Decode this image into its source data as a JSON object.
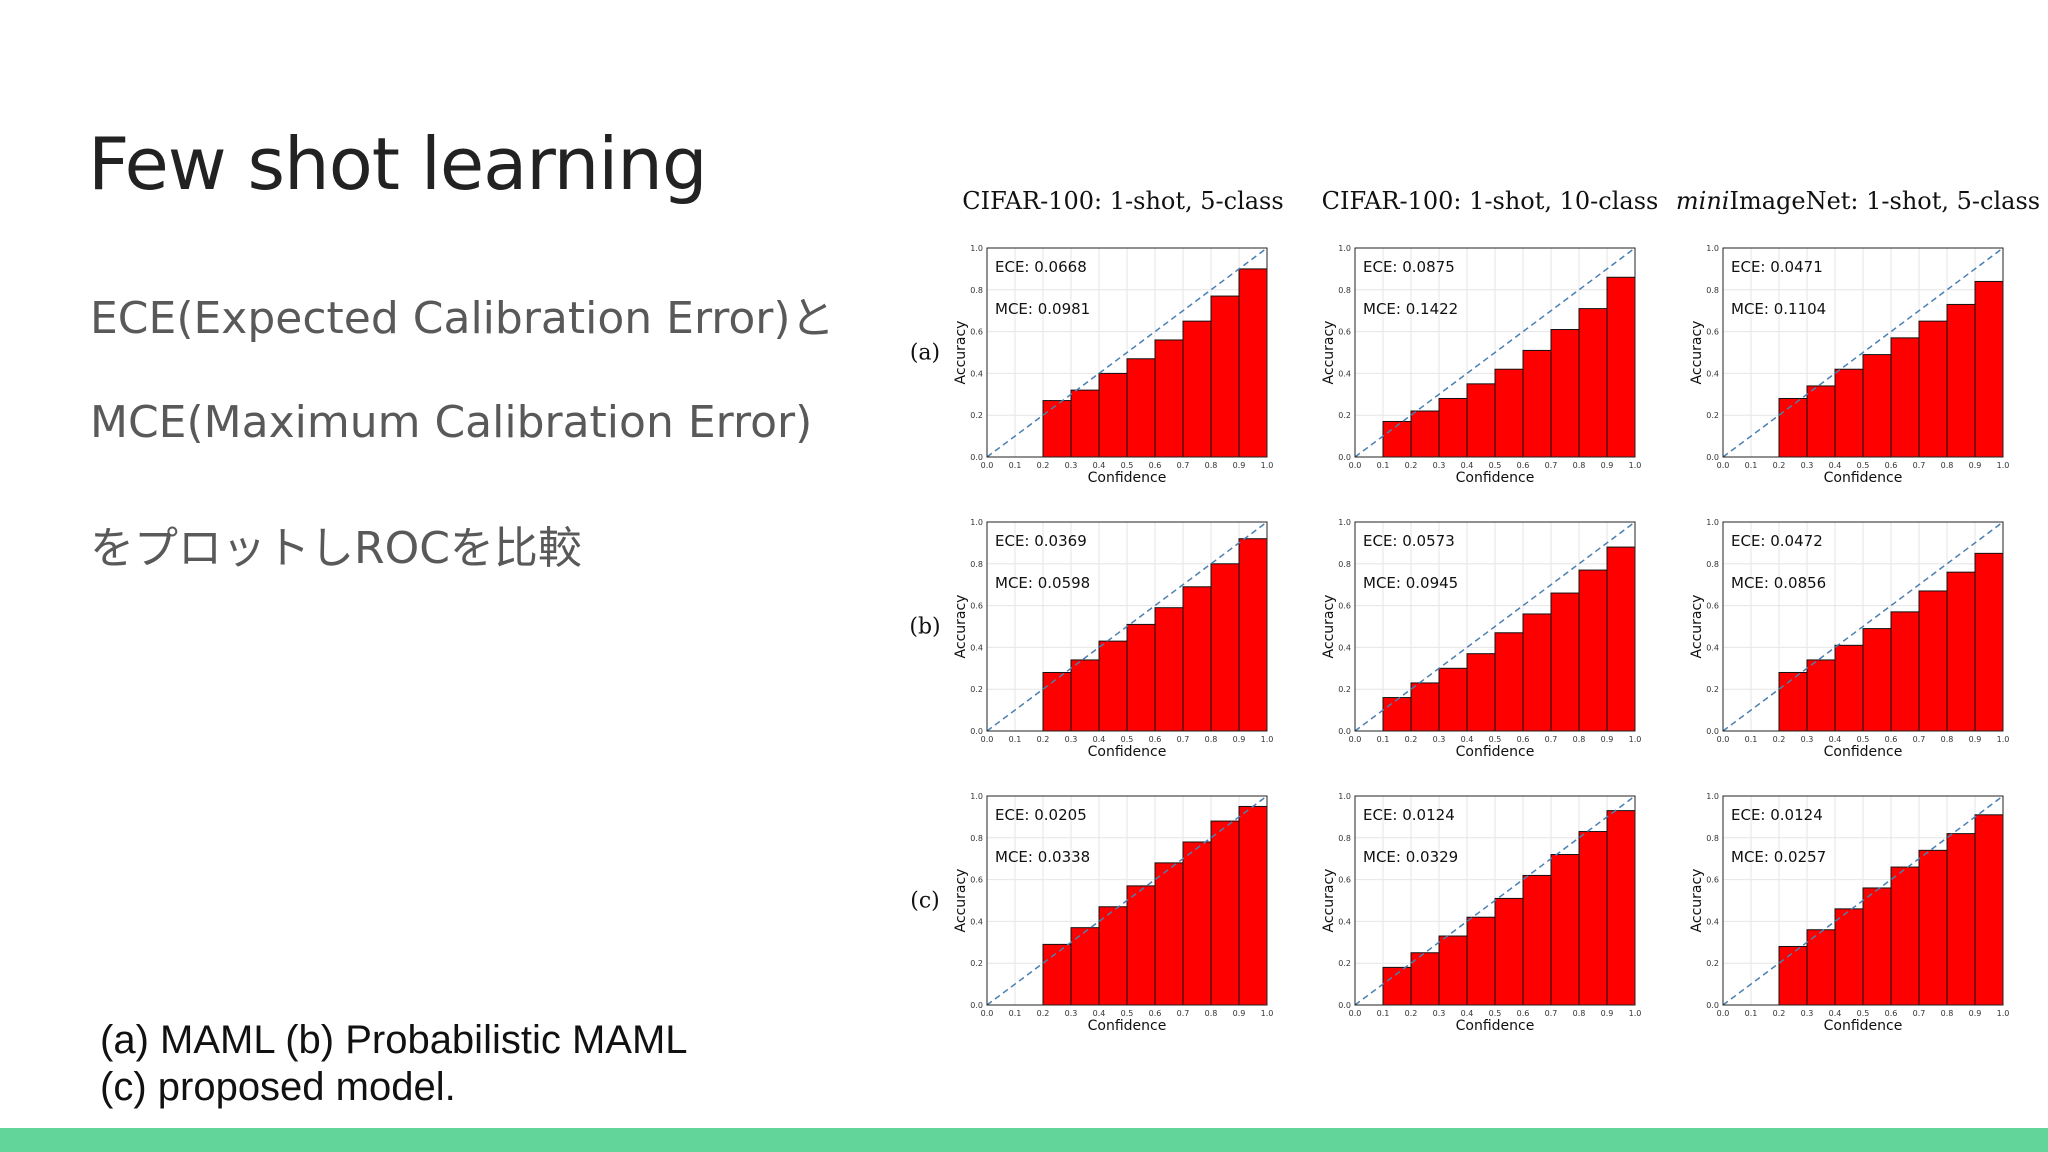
{
  "slide": {
    "title": "Few shot learning",
    "body_lines": [
      "ECE(Expected Calibration Error)と",
      "MCE(Maximum Calibration Error)",
      "をプロットしROCを比較"
    ],
    "caption_lines": [
      "(a) MAML (b) Probabilistic MAML",
      "(c) proposed model."
    ],
    "accent_color": "#62d59a"
  },
  "chart_data": {
    "type": "bar",
    "column_titles": [
      {
        "prefix": "",
        "italic": "",
        "rest": "CIFAR-100: 1-shot, 5-class"
      },
      {
        "prefix": "",
        "italic": "",
        "rest": "CIFAR-100: 1-shot, 10-class"
      },
      {
        "prefix": "",
        "italic": "mini",
        "rest": "ImageNet: 1-shot, 5-class"
      }
    ],
    "row_labels": [
      "(a)",
      "(b)",
      "(c)"
    ],
    "xlabel": "Confidence",
    "ylabel": "Accuracy",
    "xlim": [
      0,
      1
    ],
    "ylim": [
      0,
      1
    ],
    "ticks": [
      "0.0",
      "0.1",
      "0.2",
      "0.3",
      "0.4",
      "0.5",
      "0.6",
      "0.7",
      "0.8",
      "0.9",
      "1.0"
    ],
    "y_ticks": [
      "0.0",
      "0.2",
      "0.4",
      "0.6",
      "0.8",
      "1.0"
    ],
    "bin_edges": [
      0,
      0.1,
      0.2,
      0.3,
      0.4,
      0.5,
      0.6,
      0.7,
      0.8,
      0.9,
      1.0
    ],
    "bar_color": "#ff0000",
    "diagonal_color": "#4a7fb0",
    "grid": true,
    "panels": [
      [
        {
          "ece_label": "ECE: 0.0668",
          "mce_label": "MCE: 0.0981",
          "values": [
            0,
            0,
            0.27,
            0.32,
            0.4,
            0.47,
            0.56,
            0.65,
            0.77,
            0.9
          ]
        },
        {
          "ece_label": "ECE: 0.0875",
          "mce_label": "MCE: 0.1422",
          "values": [
            0,
            0.17,
            0.22,
            0.28,
            0.35,
            0.42,
            0.51,
            0.61,
            0.71,
            0.86
          ]
        },
        {
          "ece_label": "ECE: 0.0471",
          "mce_label": "MCE: 0.1104",
          "values": [
            0,
            0,
            0.28,
            0.34,
            0.42,
            0.49,
            0.57,
            0.65,
            0.73,
            0.84
          ]
        }
      ],
      [
        {
          "ece_label": "ECE: 0.0369",
          "mce_label": "MCE: 0.0598",
          "values": [
            0,
            0,
            0.28,
            0.34,
            0.43,
            0.51,
            0.59,
            0.69,
            0.8,
            0.92
          ]
        },
        {
          "ece_label": "ECE: 0.0573",
          "mce_label": "MCE: 0.0945",
          "values": [
            0,
            0.16,
            0.23,
            0.3,
            0.37,
            0.47,
            0.56,
            0.66,
            0.77,
            0.88
          ]
        },
        {
          "ece_label": "ECE: 0.0472",
          "mce_label": "MCE: 0.0856",
          "values": [
            0,
            0,
            0.28,
            0.34,
            0.41,
            0.49,
            0.57,
            0.67,
            0.76,
            0.85
          ]
        }
      ],
      [
        {
          "ece_label": "ECE: 0.0205",
          "mce_label": "MCE: 0.0338",
          "values": [
            0,
            0,
            0.29,
            0.37,
            0.47,
            0.57,
            0.68,
            0.78,
            0.88,
            0.95
          ]
        },
        {
          "ece_label": "ECE: 0.0124",
          "mce_label": "MCE: 0.0329",
          "values": [
            0,
            0.18,
            0.25,
            0.33,
            0.42,
            0.51,
            0.62,
            0.72,
            0.83,
            0.93
          ]
        },
        {
          "ece_label": "ECE: 0.0124",
          "mce_label": "MCE: 0.0257",
          "values": [
            0,
            0,
            0.28,
            0.36,
            0.46,
            0.56,
            0.66,
            0.74,
            0.82,
            0.91
          ]
        }
      ]
    ]
  }
}
